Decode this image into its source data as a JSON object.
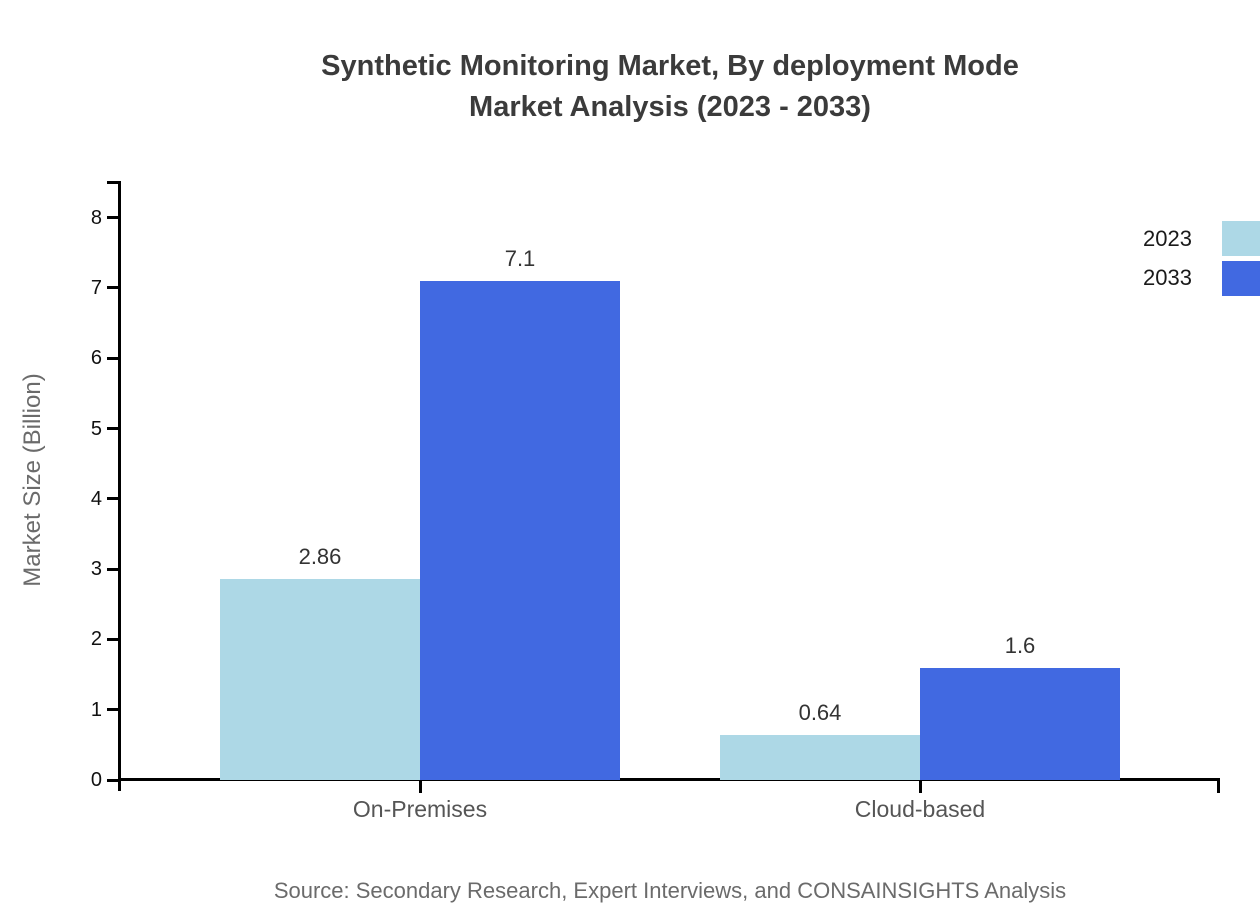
{
  "chart_data": {
    "type": "bar",
    "title": "Synthetic Monitoring Market, By deployment Mode Market Analysis (2023 - 2033)",
    "title_lines": [
      "Synthetic Monitoring Market, By deployment Mode",
      "Market Analysis (2023 - 2033)"
    ],
    "categories": [
      "On-Premises",
      "Cloud-based"
    ],
    "series": [
      {
        "name": "2023",
        "color": "#ADD8E6",
        "values": [
          2.86,
          0.64
        ]
      },
      {
        "name": "2033",
        "color": "#4169E1",
        "values": [
          7.1,
          1.6
        ]
      }
    ],
    "xlabel": "",
    "ylabel": "Market Size (Billion)",
    "ylim": [
      0,
      8
    ],
    "yticks": [
      0,
      1,
      2,
      3,
      4,
      5,
      6,
      7,
      8
    ],
    "grid": false,
    "legend_position": "top-right",
    "value_label_color": "#333333",
    "axis_color": "#000000",
    "source": "Source: Secondary Research, Expert Interviews, and CONSAINSIGHTS Analysis"
  }
}
